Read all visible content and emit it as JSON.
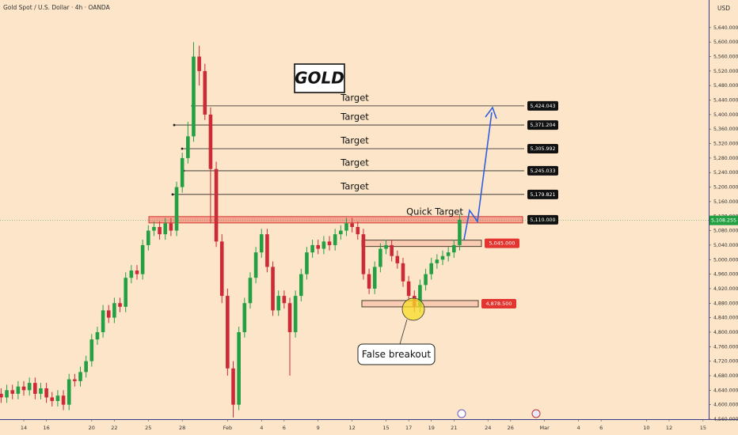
{
  "chart_data": {
    "type": "candlestick",
    "title": "Gold Spot / U.S. Dollar · 4h · OANDA",
    "currency": "USD",
    "annotation_title": "GOLD",
    "callout": "False breakout",
    "up_color": "#22a043",
    "down_color": "#cc2a36",
    "xlim": [
      -2.1,
      60.5
    ],
    "ylim": [
      4560,
      5716
    ],
    "xticks": [
      {
        "value": 0,
        "label": "14"
      },
      {
        "value": 2,
        "label": "16"
      },
      {
        "value": 6,
        "label": "20"
      },
      {
        "value": 8,
        "label": "22"
      },
      {
        "value": 11,
        "label": "25"
      },
      {
        "value": 14,
        "label": "28"
      },
      {
        "value": 18,
        "label": "Feb"
      },
      {
        "value": 21,
        "label": "4"
      },
      {
        "value": 23,
        "label": "6"
      },
      {
        "value": 26,
        "label": "9"
      },
      {
        "value": 29,
        "label": "12"
      },
      {
        "value": 32,
        "label": "15"
      },
      {
        "value": 34,
        "label": "17"
      },
      {
        "value": 36,
        "label": "19"
      },
      {
        "value": 38,
        "label": "21"
      },
      {
        "value": 41,
        "label": "24"
      },
      {
        "value": 43,
        "label": "26"
      },
      {
        "value": 46,
        "label": "Mar"
      },
      {
        "value": 49,
        "label": "4"
      },
      {
        "value": 51,
        "label": "6"
      },
      {
        "value": 55,
        "label": "10"
      },
      {
        "value": 57,
        "label": "12"
      },
      {
        "value": 60,
        "label": "15"
      }
    ],
    "yticks": [
      {
        "value": 4560,
        "label": "4,560.000"
      },
      {
        "value": 4600,
        "label": "4,600.000"
      },
      {
        "value": 4640,
        "label": "4,640.000"
      },
      {
        "value": 4680,
        "label": "4,680.000"
      },
      {
        "value": 4720,
        "label": "4,720.000"
      },
      {
        "value": 4760,
        "label": "4,760.000"
      },
      {
        "value": 4800,
        "label": "4,800.000"
      },
      {
        "value": 4840,
        "label": "4,840.000"
      },
      {
        "value": 4880,
        "label": "4,880.000"
      },
      {
        "value": 4920,
        "label": "4,920.000"
      },
      {
        "value": 4960,
        "label": "4,960.000"
      },
      {
        "value": 5000,
        "label": "5,000.000"
      },
      {
        "value": 5040,
        "label": "5,040.000"
      },
      {
        "value": 5080,
        "label": "5,080.000"
      },
      {
        "value": 5120,
        "label": "5,120.000"
      },
      {
        "value": 5160,
        "label": "5,160.000"
      },
      {
        "value": 5200,
        "label": "5,200.000"
      },
      {
        "value": 5240,
        "label": "5,240.000"
      },
      {
        "value": 5280,
        "label": "5,280.000"
      },
      {
        "value": 5320,
        "label": "5,320.000"
      },
      {
        "value": 5360,
        "label": "5,360.000"
      },
      {
        "value": 5400,
        "label": "5,400.000"
      },
      {
        "value": 5440,
        "label": "5,440.000"
      },
      {
        "value": 5480,
        "label": "5,480.000"
      },
      {
        "value": 5520,
        "label": "5,520.000"
      },
      {
        "value": 5560,
        "label": "5,560.000"
      },
      {
        "value": 5600,
        "label": "5,600.000"
      },
      {
        "value": 5640,
        "label": "5,640.000"
      }
    ],
    "x": [
      -2,
      -1.5,
      -1,
      -0.5,
      0,
      0.5,
      1,
      1.5,
      2,
      2.5,
      3,
      3.5,
      4,
      4.5,
      5,
      5.5,
      6,
      6.5,
      7,
      7.5,
      8,
      8.5,
      9,
      9.5,
      10,
      10.5,
      11,
      11.5,
      12,
      12.5,
      13,
      13.5,
      14,
      14.5,
      15,
      15.5,
      16,
      16.5,
      17,
      17.5,
      18,
      18.5,
      19,
      19.5,
      20,
      20.5,
      21,
      21.5,
      22,
      22.5,
      23,
      23.5,
      24,
      24.5,
      25,
      25.5,
      26,
      26.5,
      27,
      27.5,
      28,
      28.5,
      29,
      29.5,
      30,
      30.5,
      31,
      31.5,
      32,
      32.5,
      33,
      33.5,
      34,
      34.5,
      35,
      35.5,
      36,
      36.5,
      37,
      37.5,
      38,
      38.5
    ],
    "open": [
      4630,
      4620,
      4640,
      4630,
      4650,
      4640,
      4660,
      4630,
      4645,
      4620,
      4610,
      4625,
      4600,
      4670,
      4665,
      4690,
      4720,
      4780,
      4800,
      4860,
      4840,
      4880,
      4870,
      4950,
      4970,
      4960,
      5040,
      5080,
      5090,
      5070,
      5100,
      5080,
      5200,
      5280,
      5340,
      5560,
      5520,
      5400,
      5250,
      5050,
      4900,
      4700,
      4600,
      4800,
      4880,
      4950,
      5020,
      5070,
      4980,
      4860,
      4900,
      4880,
      4800,
      4900,
      4960,
      5020,
      5040,
      5030,
      5050,
      5040,
      5070,
      5080,
      5100,
      5090,
      5070,
      4960,
      4920,
      4980,
      5030,
      5040,
      5010,
      4990,
      4940,
      4900,
      4870,
      4930,
      4960,
      4990,
      5000,
      5010,
      5020,
      5040
    ],
    "high": [
      4645,
      4655,
      4655,
      4665,
      4665,
      4675,
      4675,
      4660,
      4660,
      4635,
      4640,
      4640,
      4685,
      4685,
      4705,
      4735,
      4795,
      4815,
      4875,
      4875,
      4895,
      4895,
      4965,
      4985,
      4985,
      5055,
      5095,
      5105,
      5105,
      5115,
      5115,
      5215,
      5295,
      5380,
      5600,
      5590,
      5540,
      5420,
      5270,
      5070,
      4920,
      4720,
      4815,
      4895,
      4965,
      5035,
      5085,
      5085,
      4995,
      4915,
      4915,
      4895,
      4915,
      4975,
      5035,
      5055,
      5055,
      5065,
      5065,
      5085,
      5095,
      5115,
      5115,
      5105,
      5085,
      4975,
      4995,
      5045,
      5055,
      5055,
      5025,
      5005,
      4955,
      4915,
      4945,
      4975,
      5005,
      5015,
      5025,
      5035,
      5055,
      5125
    ],
    "low": [
      4605,
      4605,
      4615,
      4615,
      4625,
      4625,
      4615,
      4615,
      4605,
      4595,
      4595,
      4585,
      4585,
      4650,
      4650,
      4675,
      4705,
      4765,
      4785,
      4825,
      4825,
      4855,
      4855,
      4935,
      4945,
      4945,
      5025,
      5065,
      5055,
      5055,
      5065,
      5065,
      5185,
      5265,
      5325,
      5480,
      5385,
      5100,
      5035,
      4880,
      4680,
      4565,
      4585,
      4785,
      4865,
      4935,
      5005,
      4965,
      4845,
      4845,
      4865,
      4680,
      4785,
      4885,
      4945,
      5005,
      5015,
      5015,
      5025,
      5025,
      5055,
      5065,
      5075,
      5055,
      4945,
      4905,
      4905,
      4965,
      5015,
      4995,
      4975,
      4925,
      4885,
      4855,
      4855,
      4915,
      4945,
      4975,
      4985,
      4995,
      5005,
      5025
    ],
    "close": [
      4620,
      4640,
      4630,
      4650,
      4640,
      4660,
      4630,
      4645,
      4620,
      4610,
      4625,
      4600,
      4670,
      4665,
      4690,
      4720,
      4780,
      4800,
      4860,
      4840,
      4880,
      4870,
      4950,
      4970,
      4960,
      5040,
      5080,
      5090,
      5070,
      5100,
      5080,
      5200,
      5280,
      5340,
      5560,
      5520,
      5400,
      5250,
      5050,
      4900,
      4700,
      4600,
      4800,
      4880,
      4950,
      5020,
      5070,
      4980,
      4860,
      4900,
      4880,
      4800,
      4900,
      4960,
      5020,
      5040,
      5030,
      5050,
      5040,
      5070,
      5080,
      5100,
      5090,
      5070,
      4960,
      4920,
      4980,
      5030,
      5040,
      5010,
      4990,
      4940,
      4900,
      4870,
      4930,
      4960,
      4990,
      5000,
      5010,
      5020,
      5040,
      5110
    ],
    "targets": [
      {
        "text": "Target",
        "value": 5424.043,
        "label": "5,424.043"
      },
      {
        "text": "Target",
        "value": 5371.204,
        "label": "5,371.204"
      },
      {
        "text": "Target",
        "value": 5305.992,
        "label": "5,305.992"
      },
      {
        "text": "Target",
        "value": 5245.033,
        "label": "5,245.033"
      },
      {
        "text": "Target",
        "value": 5179.821,
        "label": "5,179.821"
      },
      {
        "text": "Quick Target",
        "value": 5110,
        "label": "5,110.000"
      }
    ],
    "zones": [
      {
        "value": 5045,
        "label": "5,045.000"
      },
      {
        "value": 4878.5,
        "label": "4,878.500"
      }
    ],
    "last_price": {
      "value": 5108.255,
      "label": "5,108.255"
    }
  }
}
